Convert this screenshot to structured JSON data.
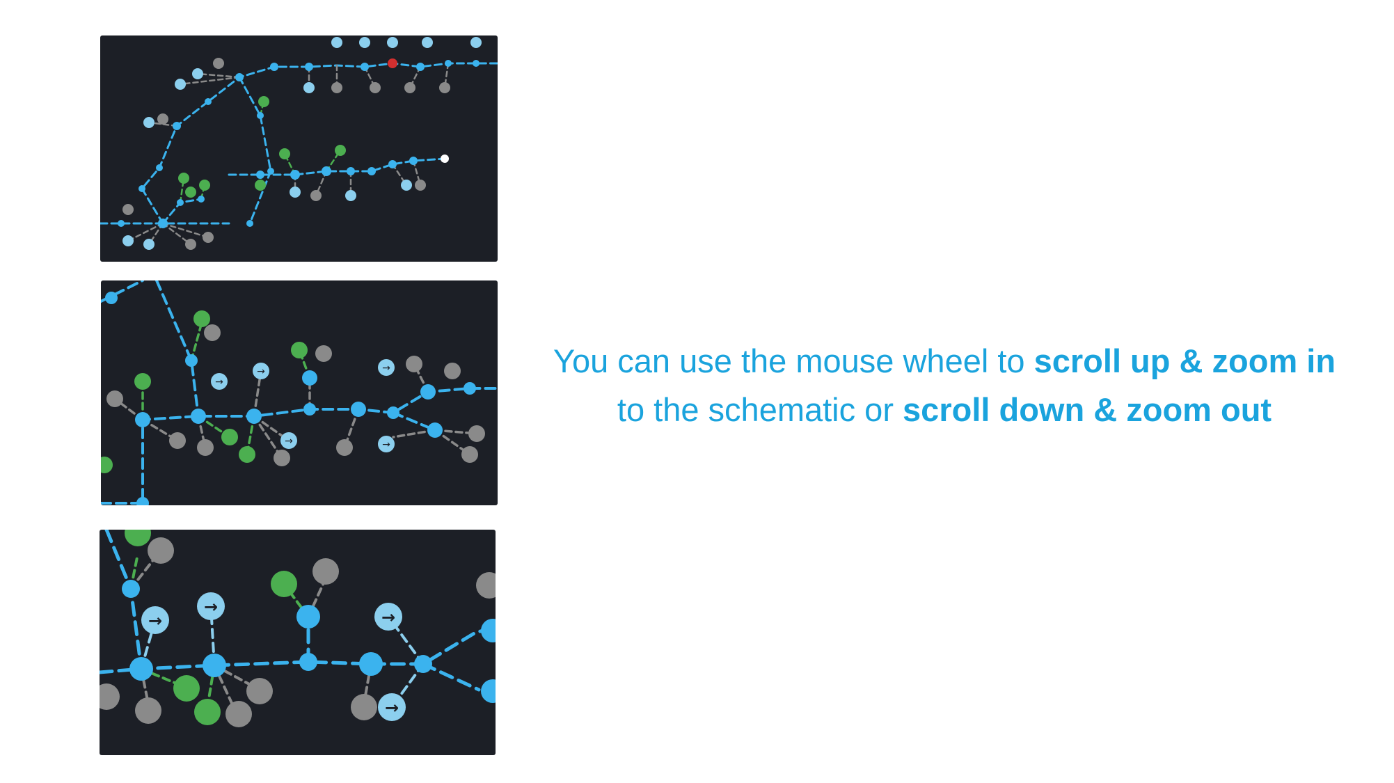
{
  "caption": {
    "line1_text": "You can use the mouse wheel to ",
    "line1_bold": "scroll up & zoom in",
    "line2_text": "to the schematic or ",
    "line2_bold": "scroll down & zoom out"
  },
  "colors": {
    "background": "#ffffff",
    "panel_bg": "#1c1f26",
    "network_blue": "#3bb3ee",
    "light_blue_node": "#8ccfee",
    "green_node": "#4caf50",
    "gray_node": "#8a8a8a",
    "alarm_red": "#d32f2f",
    "caption_text": "#1aa3dd"
  },
  "icons": [
    "arrow-right-icon",
    "factory-icon",
    "sprout-icon",
    "substation-icon",
    "ellipsis-icon"
  ]
}
